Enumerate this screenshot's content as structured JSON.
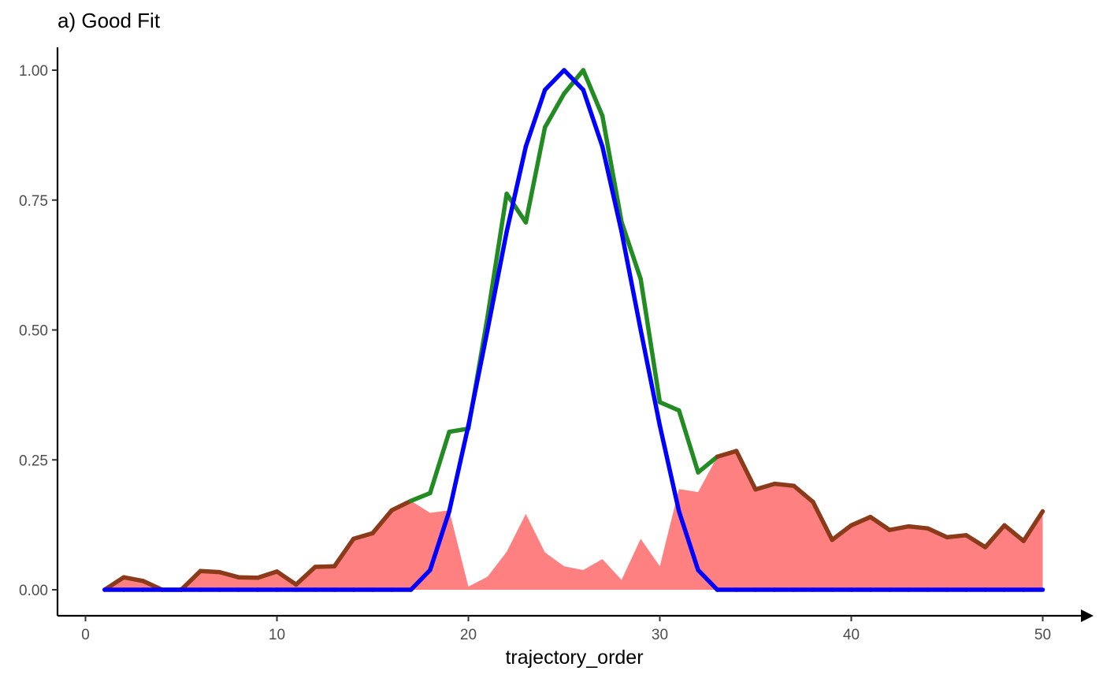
{
  "chart_data": {
    "type": "line",
    "title": "a) Good Fit",
    "xlabel": "trajectory_order",
    "ylabel": "",
    "xlim": [
      1,
      50
    ],
    "ylim": [
      0,
      1
    ],
    "x_ticks": [
      "0",
      "10",
      "20",
      "30",
      "40",
      "50"
    ],
    "y_ticks": [
      "0.00",
      "0.25",
      "0.50",
      "0.75",
      "1.00"
    ],
    "grid": false,
    "legend": "none",
    "colors": {
      "observed": "#228B22",
      "fitted": "#0000FF",
      "overlap": "#800080",
      "residual_area": "#FF8080"
    },
    "x": [
      1,
      2,
      3,
      4,
      5,
      6,
      7,
      8,
      9,
      10,
      11,
      12,
      13,
      14,
      15,
      16,
      17,
      18,
      19,
      20,
      21,
      22,
      23,
      24,
      25,
      26,
      27,
      28,
      29,
      30,
      31,
      32,
      33,
      34,
      35,
      36,
      37,
      38,
      39,
      40,
      41,
      42,
      43,
      44,
      45,
      46,
      47,
      48,
      49,
      50
    ],
    "series": [
      {
        "key": "observed",
        "values": [
          0.0,
          0.024,
          0.017,
          0.0,
          0.0,
          0.036,
          0.034,
          0.024,
          0.023,
          0.035,
          0.01,
          0.044,
          0.045,
          0.098,
          0.109,
          0.153,
          0.171,
          0.186,
          0.304,
          0.31,
          0.525,
          0.762,
          0.707,
          0.89,
          0.955,
          1.0,
          0.912,
          0.708,
          0.598,
          0.361,
          0.345,
          0.226,
          0.256,
          0.267,
          0.193,
          0.204,
          0.2,
          0.169,
          0.096,
          0.124,
          0.14,
          0.115,
          0.122,
          0.118,
          0.101,
          0.105,
          0.082,
          0.124,
          0.094,
          0.151
        ]
      },
      {
        "key": "fitted",
        "values": [
          0,
          0,
          0,
          0,
          0,
          0,
          0,
          0,
          0,
          0,
          0,
          0,
          0,
          0,
          0,
          0,
          0,
          0.038,
          0.151,
          0.316,
          0.5,
          0.689,
          0.853,
          0.962,
          1.0,
          0.962,
          0.853,
          0.689,
          0.5,
          0.316,
          0.151,
          0.038,
          0,
          0,
          0,
          0,
          0,
          0,
          0,
          0,
          0,
          0,
          0,
          0,
          0,
          0,
          0,
          0,
          0,
          0
        ]
      }
    ]
  }
}
